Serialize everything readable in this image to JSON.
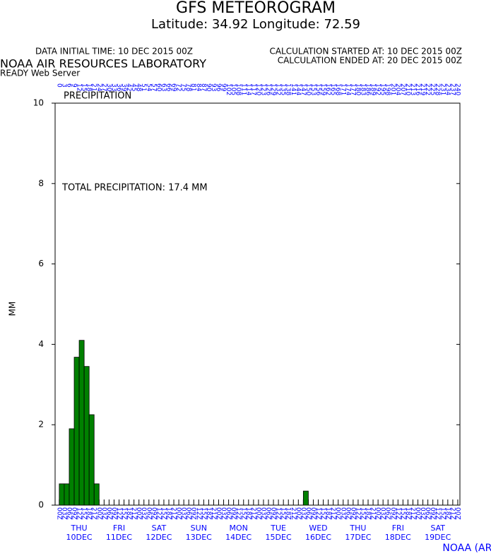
{
  "chart_data": {
    "type": "bar",
    "title": "GFS METEOROGRAM",
    "subtitle": "Latitude: 34.92 Longitude:  72.59",
    "data_time": "DATA INITIAL TIME: 10 DEC 2015 00Z",
    "calc_started": "CALCULATION STARTED AT: 10 DEC 2015 00Z",
    "calc_ended": "CALCULATION ENDED AT: 20 DEC 2015 00Z",
    "lab": "NOAA AIR RESOURCES LABORATORY",
    "server": "READY Web Server",
    "panel_title": "PRECIPITATION",
    "annotation": "TOTAL PRECIPITATION:  17.4 MM",
    "ylabel": "MM",
    "credit": "NOAA (ARL)",
    "color": "#008000",
    "xlim": [
      -2.5,
      241.3
    ],
    "xticks": [
      0,
      3,
      6,
      9,
      12,
      15,
      18,
      21,
      24,
      27,
      30,
      33,
      36,
      39,
      42,
      45,
      48,
      51,
      54,
      57,
      60,
      63,
      66,
      69,
      72,
      75,
      78,
      81,
      84,
      87,
      90,
      93,
      96,
      99,
      102,
      105,
      108,
      111,
      114,
      117,
      120,
      123,
      126,
      129,
      132,
      135,
      138,
      141,
      144,
      147,
      150,
      153,
      156,
      159,
      162,
      165,
      168,
      171,
      174,
      177,
      180,
      183,
      186,
      189,
      192,
      195,
      198,
      201,
      204,
      207,
      210,
      213,
      216,
      219,
      222,
      225,
      228,
      231,
      234,
      237,
      240
    ],
    "hour_labels": [
      "00Z",
      "03Z",
      "06Z",
      "09Z",
      "12Z",
      "15Z",
      "18Z",
      "21Z",
      "00Z",
      "03Z",
      "06Z",
      "09Z",
      "12Z",
      "15Z",
      "18Z",
      "21Z",
      "00Z",
      "03Z",
      "06Z",
      "09Z",
      "12Z",
      "15Z",
      "18Z",
      "21Z",
      "00Z",
      "03Z",
      "06Z",
      "09Z",
      "12Z",
      "15Z",
      "18Z",
      "21Z",
      "00Z",
      "03Z",
      "06Z",
      "09Z",
      "12Z",
      "15Z",
      "18Z",
      "21Z",
      "00Z",
      "03Z",
      "06Z",
      "09Z",
      "12Z",
      "15Z",
      "18Z",
      "21Z",
      "00Z",
      "03Z",
      "06Z",
      "09Z",
      "12Z",
      "15Z",
      "18Z",
      "21Z",
      "00Z",
      "03Z",
      "06Z",
      "09Z",
      "12Z",
      "15Z",
      "18Z",
      "21Z",
      "00Z",
      "03Z",
      "06Z",
      "09Z",
      "12Z",
      "15Z",
      "18Z",
      "21Z",
      "00Z",
      "03Z",
      "06Z",
      "09Z",
      "12Z",
      "15Z",
      "18Z",
      "21Z",
      "00Z"
    ],
    "days": [
      {
        "day": "THU",
        "date": "10DEC"
      },
      {
        "day": "FRI",
        "date": "11DEC"
      },
      {
        "day": "SAT",
        "date": "12DEC"
      },
      {
        "day": "SUN",
        "date": "13DEC"
      },
      {
        "day": "MON",
        "date": "14DEC"
      },
      {
        "day": "TUE",
        "date": "15DEC"
      },
      {
        "day": "WED",
        "date": "16DEC"
      },
      {
        "day": "THU",
        "date": "17DEC"
      },
      {
        "day": "FRI",
        "date": "18DEC"
      },
      {
        "day": "SAT",
        "date": "19DEC"
      }
    ],
    "values": [
      0.53,
      0.53,
      1.9,
      3.68,
      4.1,
      3.45,
      2.25,
      0.53,
      0,
      0,
      0,
      0,
      0,
      0,
      0,
      0,
      0,
      0,
      0,
      0,
      0,
      0,
      0,
      0,
      0,
      0,
      0,
      0,
      0,
      0,
      0,
      0,
      0,
      0,
      0,
      0,
      0,
      0,
      0,
      0,
      0,
      0,
      0,
      0,
      0,
      0,
      0,
      0,
      0,
      0.35,
      0,
      0,
      0,
      0,
      0,
      0,
      0,
      0,
      0,
      0,
      0,
      0,
      0,
      0,
      0,
      0,
      0,
      0,
      0,
      0,
      0,
      0,
      0,
      0,
      0,
      0,
      0,
      0,
      0,
      0
    ],
    "ylim": [
      0,
      10
    ],
    "yticks": [
      0,
      2,
      4,
      6,
      8,
      10
    ]
  }
}
